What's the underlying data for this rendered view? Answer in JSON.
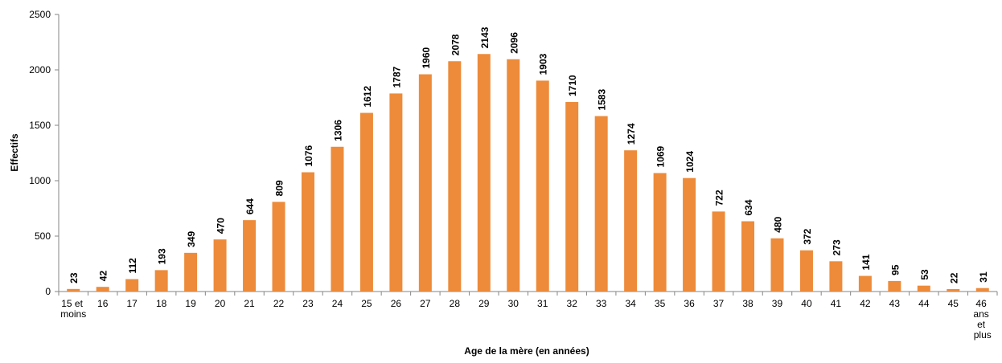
{
  "chart_data": {
    "type": "bar",
    "x_label": "Age de la mère (en années)",
    "y_label": "Effectifs",
    "categories": [
      "15 et moins",
      "16",
      "17",
      "18",
      "19",
      "20",
      "21",
      "22",
      "23",
      "24",
      "25",
      "26",
      "27",
      "28",
      "29",
      "30",
      "31",
      "32",
      "33",
      "34",
      "35",
      "36",
      "37",
      "38",
      "39",
      "40",
      "41",
      "42",
      "43",
      "44",
      "45",
      "46 ans et plus"
    ],
    "values": [
      23,
      42,
      112,
      193,
      349,
      470,
      644,
      809,
      1076,
      1306,
      1612,
      1787,
      1960,
      2078,
      2143,
      2096,
      1903,
      1710,
      1583,
      1274,
      1069,
      1024,
      722,
      634,
      480,
      372,
      273,
      141,
      95,
      53,
      22,
      31
    ],
    "color": "#ed8b3a",
    "label_color": "#b8651f",
    "ylim": [
      0,
      2500
    ],
    "yticks": [
      0,
      500,
      1000,
      1500,
      2000,
      2500
    ],
    "grid": false
  }
}
